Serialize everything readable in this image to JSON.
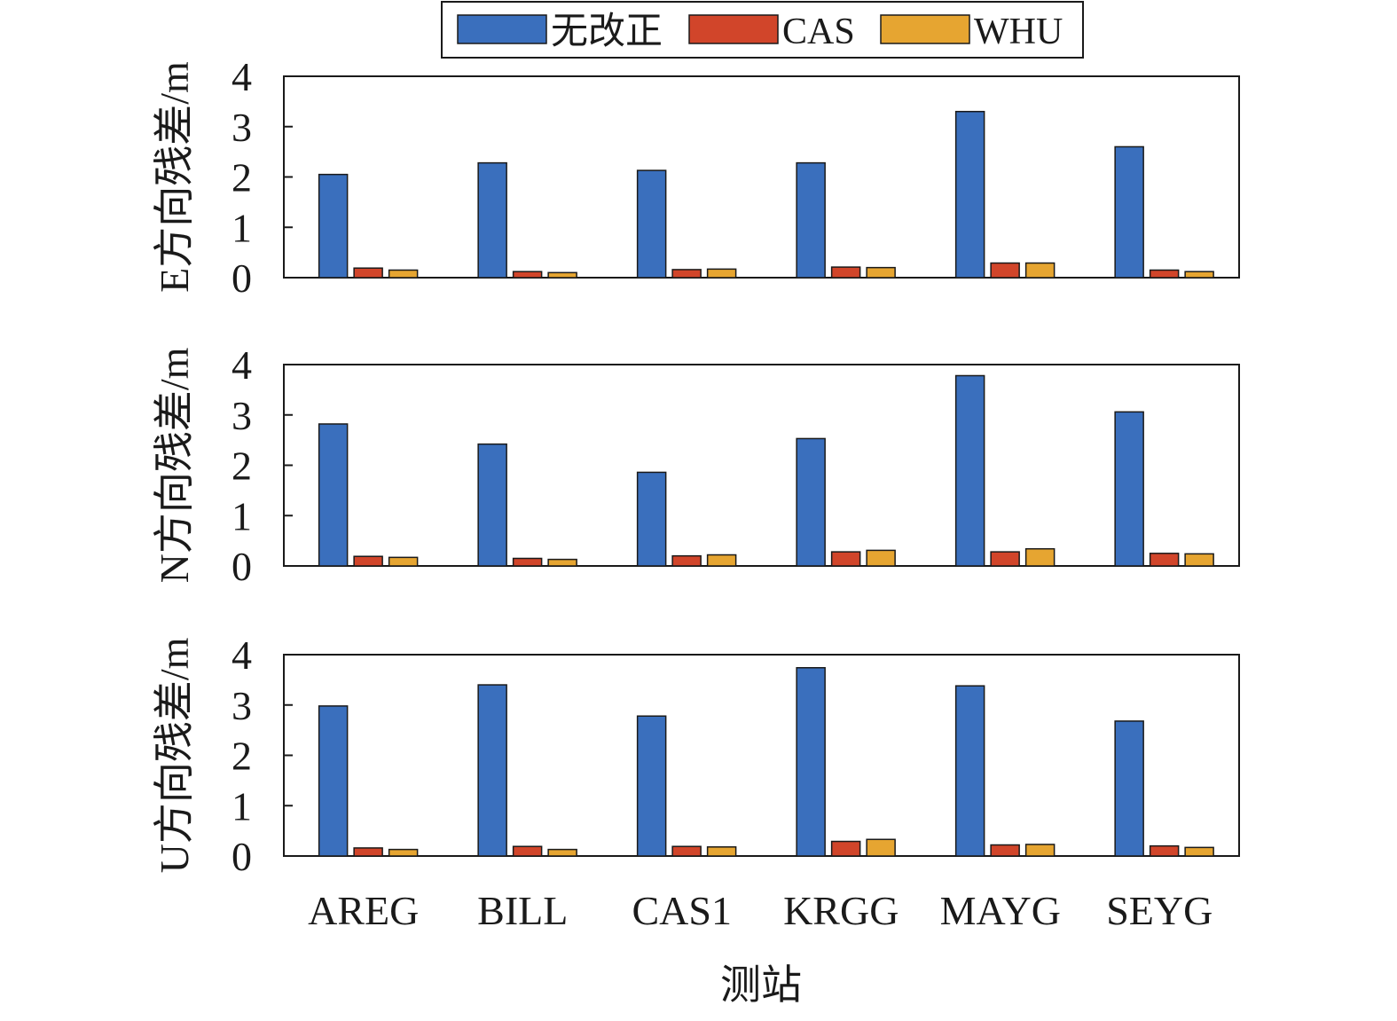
{
  "chart_data": {
    "type": "bar",
    "categories": [
      "AREG",
      "BILL",
      "CAS1",
      "KRGG",
      "MAYG",
      "SEYG"
    ],
    "xlabel": "测站",
    "legend": {
      "placement": "top-center",
      "entries": [
        "无改正",
        "CAS",
        "WHU"
      ]
    },
    "colors": {
      "无改正": "#3a6fbd",
      "CAS": "#d1452a",
      "WHU": "#e6a531"
    },
    "grid": false,
    "panels": [
      {
        "ylabel": "E方向残差/m",
        "ylim": [
          0,
          4
        ],
        "yticks": [
          "0",
          "1",
          "2",
          "3",
          "4"
        ],
        "series": [
          {
            "name": "无改正",
            "values": [
              2.05,
              2.28,
              2.13,
              2.28,
              3.3,
              2.6
            ]
          },
          {
            "name": "CAS",
            "values": [
              0.19,
              0.12,
              0.16,
              0.21,
              0.29,
              0.15
            ]
          },
          {
            "name": "WHU",
            "values": [
              0.15,
              0.1,
              0.17,
              0.2,
              0.29,
              0.12
            ]
          }
        ]
      },
      {
        "ylabel": "N方向残差/m",
        "ylim": [
          0,
          4
        ],
        "yticks": [
          "0",
          "1",
          "2",
          "3",
          "4"
        ],
        "series": [
          {
            "name": "无改正",
            "values": [
              2.82,
              2.42,
              1.86,
              2.53,
              3.78,
              3.06
            ]
          },
          {
            "name": "CAS",
            "values": [
              0.19,
              0.15,
              0.2,
              0.28,
              0.28,
              0.25
            ]
          },
          {
            "name": "WHU",
            "values": [
              0.17,
              0.13,
              0.22,
              0.31,
              0.34,
              0.24
            ]
          }
        ]
      },
      {
        "ylabel": "U方向残差/m",
        "ylim": [
          0,
          4
        ],
        "yticks": [
          "0",
          "1",
          "2",
          "3",
          "4"
        ],
        "series": [
          {
            "name": "无改正",
            "values": [
              2.98,
              3.4,
              2.78,
              3.74,
              3.38,
              2.68
            ]
          },
          {
            "name": "CAS",
            "values": [
              0.16,
              0.19,
              0.19,
              0.29,
              0.22,
              0.2
            ]
          },
          {
            "name": "WHU",
            "values": [
              0.13,
              0.13,
              0.18,
              0.33,
              0.23,
              0.17
            ]
          }
        ]
      }
    ]
  }
}
